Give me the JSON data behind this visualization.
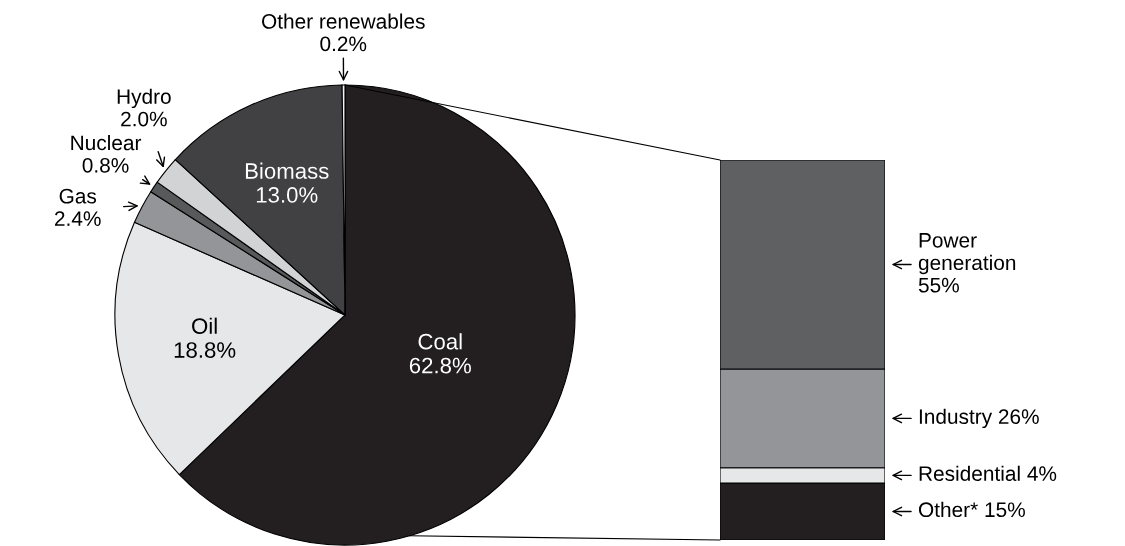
{
  "chart_data": [
    {
      "type": "pie",
      "categories": [
        "Coal",
        "Oil",
        "Gas",
        "Nuclear",
        "Hydro",
        "Biomass",
        "Other renewables"
      ],
      "values": [
        62.8,
        18.8,
        2.4,
        0.8,
        2.0,
        13.0,
        0.2
      ],
      "colors": [
        "#231f20",
        "#e6e7e8",
        "#939598",
        "#58595b",
        "#d1d3d4",
        "#414042",
        "#f1f2f2"
      ],
      "value_labels": [
        "62.8%",
        "18.8%",
        "2.4%",
        "0.8%",
        "2.0%",
        "13.0%",
        "0.2%"
      ]
    },
    {
      "type": "bar",
      "stacked": true,
      "categories": [
        null
      ],
      "series": [
        {
          "name": "Other*",
          "color": "#231f20",
          "values": [
            15
          ],
          "value_labels": [
            "15%"
          ]
        },
        {
          "name": "Residential",
          "color": "#e6e7e8",
          "values": [
            4
          ],
          "value_labels": [
            "4%"
          ]
        },
        {
          "name": "Industry",
          "color": "#939598",
          "values": [
            26
          ],
          "value_labels": [
            "26%"
          ]
        },
        {
          "name": "Power\ngeneration",
          "color": "#5f6062",
          "values": [
            55
          ],
          "value_labels": [
            "55%"
          ]
        }
      ]
    }
  ]
}
